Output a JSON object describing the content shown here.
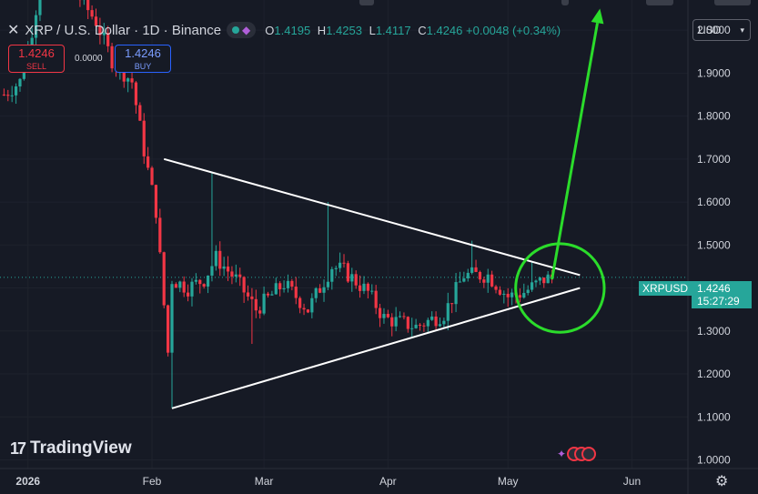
{
  "header": {
    "close_glyph": "✕",
    "symbol_title": "XRP / U.S. Dollar · 1D · Binance",
    "ohlc": {
      "o_label": "O",
      "o": "1.4195",
      "h_label": "H",
      "h": "1.4253",
      "l_label": "L",
      "l": "1.4117",
      "c_label": "C",
      "c": "1.4246",
      "change": "+0.0048 (+0.34%)"
    }
  },
  "trade": {
    "sell_price": "1.4246",
    "sell_label": "SELL",
    "spread": "0.0000",
    "buy_price": "1.4246",
    "buy_label": "BUY"
  },
  "currency_selector": {
    "value": "USD",
    "chevron": "▾"
  },
  "price_tag": {
    "symbol": "XRPUSD",
    "price": "1.4246",
    "countdown": "15:27:29"
  },
  "branding": {
    "mark": "17",
    "name": "TradingView"
  },
  "icons": {
    "settings": "gear-icon",
    "event": "flag-icon",
    "indicator": "star-icon"
  },
  "colors": {
    "up": "#26a69a",
    "down": "#f23645",
    "background": "#161a25",
    "grid": "#1e222d",
    "trendline": "#ffffff",
    "annotation": "#2bdc2b"
  },
  "chart_data": {
    "type": "candlestick",
    "y_axis": {
      "ticks": [
        "2.0000",
        "1.9000",
        "1.8000",
        "1.7000",
        "1.6000",
        "1.5000",
        "1.4000",
        "1.3000",
        "1.2000",
        "1.1000",
        "1.0000"
      ],
      "range": [
        0.98,
        2.07
      ],
      "position": "right"
    },
    "x_axis": {
      "ticks": [
        "2026",
        "Feb",
        "Mar",
        "Apr",
        "May",
        "Jun"
      ],
      "tick_dates": [
        "2026-01-01",
        "2026-02-01",
        "2026-03-01",
        "2026-04-01",
        "2026-05-01",
        "2026-06-01"
      ],
      "range": [
        "2025-12-25",
        "2026-06-15"
      ]
    },
    "last_price": 1.4246,
    "grid": true,
    "waypoints": [
      {
        "date": "2025-12-26",
        "p": 1.85
      },
      {
        "date": "2025-12-30",
        "p": 1.88
      },
      {
        "date": "2026-01-02",
        "p": 2.0
      },
      {
        "date": "2026-01-05",
        "p": 2.15
      },
      {
        "date": "2026-01-12",
        "p": 2.1
      },
      {
        "date": "2026-01-18",
        "p": 2.02
      },
      {
        "date": "2026-01-22",
        "p": 1.93
      },
      {
        "date": "2026-01-27",
        "p": 1.88
      },
      {
        "date": "2026-01-30",
        "p": 1.72
      },
      {
        "date": "2026-02-02",
        "p": 1.58
      },
      {
        "date": "2026-02-05",
        "p": 1.25
      },
      {
        "date": "2026-02-06",
        "p": 1.42
      },
      {
        "date": "2026-02-10",
        "p": 1.4
      },
      {
        "date": "2026-02-14",
        "p": 1.42
      },
      {
        "date": "2026-02-17",
        "p": 1.47
      },
      {
        "date": "2026-02-22",
        "p": 1.42
      },
      {
        "date": "2026-02-27",
        "p": 1.35
      },
      {
        "date": "2026-03-06",
        "p": 1.41
      },
      {
        "date": "2026-03-12",
        "p": 1.35
      },
      {
        "date": "2026-03-18",
        "p": 1.45
      },
      {
        "date": "2026-03-21",
        "p": 1.44
      },
      {
        "date": "2026-03-27",
        "p": 1.39
      },
      {
        "date": "2026-03-31",
        "p": 1.33
      },
      {
        "date": "2026-04-08",
        "p": 1.31
      },
      {
        "date": "2026-04-15",
        "p": 1.34
      },
      {
        "date": "2026-04-20",
        "p": 1.43
      },
      {
        "date": "2026-04-26",
        "p": 1.43
      },
      {
        "date": "2026-05-01",
        "p": 1.38
      },
      {
        "date": "2026-05-05",
        "p": 1.39
      },
      {
        "date": "2026-05-10",
        "p": 1.42
      },
      {
        "date": "2026-05-12",
        "p": 1.4246
      }
    ],
    "spikes": [
      {
        "date": "2026-02-06",
        "low": 1.12
      },
      {
        "date": "2026-02-16",
        "high": 1.67
      },
      {
        "date": "2026-02-26",
        "low": 1.27
      },
      {
        "date": "2026-03-17",
        "high": 1.6
      },
      {
        "date": "2026-04-22",
        "high": 1.51
      },
      {
        "date": "2026-05-07",
        "high": 1.46
      }
    ],
    "trendlines": [
      {
        "name": "upper",
        "from": {
          "date": "2026-02-04",
          "p": 1.7
        },
        "to": {
          "date": "2026-05-19",
          "p": 1.43
        }
      },
      {
        "name": "lower",
        "from": {
          "date": "2026-02-06",
          "p": 1.12
        },
        "to": {
          "date": "2026-05-19",
          "p": 1.4
        }
      }
    ],
    "annotations": {
      "circle": {
        "date": "2026-05-14",
        "p": 1.4,
        "radius": 1.0
      },
      "arrow": {
        "from": {
          "date": "2026-05-12",
          "p": 1.42
        },
        "to": {
          "date": "2026-05-24",
          "p": 2.05
        }
      }
    }
  }
}
